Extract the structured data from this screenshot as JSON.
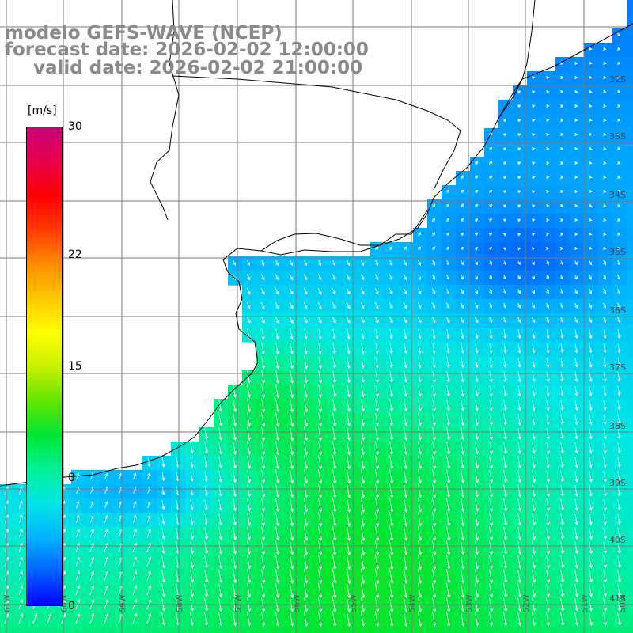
{
  "title": {
    "model": "modelo GEFS-WAVE (NCEP)",
    "forecast": "forecast date: 2026-02-02 12:00:00",
    "valid": "valid date: 2026-02-02 21:00:00"
  },
  "colorbar": {
    "unit": "[m/s]",
    "ticks": [
      {
        "label": "30",
        "value": 30
      },
      {
        "label": "22",
        "value": 22
      },
      {
        "label": "15",
        "value": 15
      },
      {
        "label": "8",
        "value": 8
      },
      {
        "label": "0",
        "value": 0
      }
    ],
    "min": 0,
    "max": 30,
    "colors": [
      "#0000ff",
      "#0064ff",
      "#00b4ff",
      "#00e6e6",
      "#00f096",
      "#00e632",
      "#64e600",
      "#c8f000",
      "#ffff00",
      "#ffc800",
      "#ff8c00",
      "#ff3c00",
      "#ff0000",
      "#e6004b",
      "#c80078"
    ]
  },
  "lat_labels": [
    "32S",
    "33S",
    "34S",
    "35S",
    "36S",
    "37S",
    "38S",
    "39S",
    "40S",
    "41S"
  ],
  "lon_labels": [
    "61W",
    "60W",
    "59W",
    "58W",
    "57W",
    "56W",
    "55W",
    "54W",
    "53W",
    "52W",
    "51W",
    "50W"
  ],
  "styles": {
    "land": "#ffffff",
    "gridline": "#7a7a7a",
    "coastline": "#000000",
    "arrow": "#ffffff",
    "title_color": "#8a8a8a"
  }
}
